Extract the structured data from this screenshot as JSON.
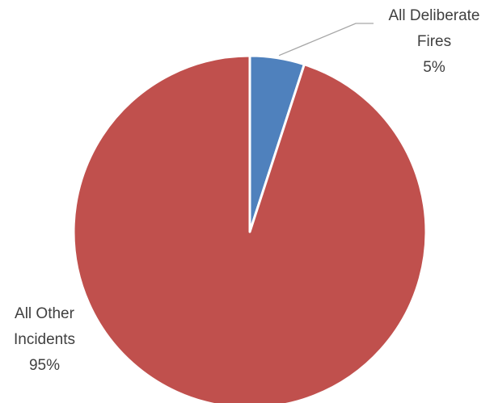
{
  "chart_data": {
    "type": "pie",
    "title": "",
    "slices": [
      {
        "name": "All Deliberate Fires",
        "label_lines": [
          "All Deliberate",
          "Fires"
        ],
        "value": 5,
        "percent_label": "5%",
        "color": "#4f81bd"
      },
      {
        "name": "All Other Incidents",
        "label_lines": [
          "All Other",
          "Incidents"
        ],
        "value": 95,
        "percent_label": "95%",
        "color": "#c0504d"
      }
    ],
    "start_angle": "12 o'clock",
    "direction": "clockwise",
    "legend": "none",
    "data_labels": "category name and percentage"
  }
}
